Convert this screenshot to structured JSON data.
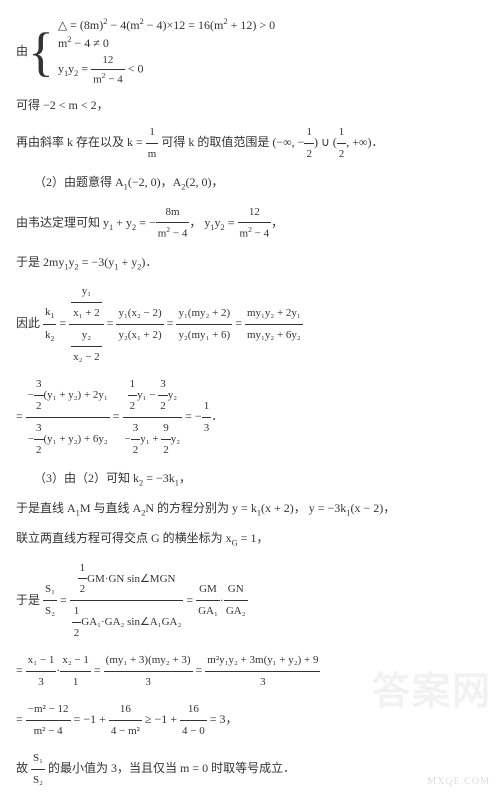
{
  "watermark": "答案网",
  "watermark_small": "MXQE.COM",
  "sys": {
    "lead": "由",
    "l1_a": "△ = (8m)",
    "l1_sup1": "2",
    "l1_b": " − 4(m",
    "l1_sup2": "2",
    "l1_c": " − 4)×12 = 16(m",
    "l1_sup3": "2",
    "l1_d": " + 12) > 0",
    "l2_a": "m",
    "l2_sup": "2",
    "l2_b": " − 4 ≠ 0",
    "l3_a": "y",
    "l3_sub1": "1",
    "l3_b": "y",
    "l3_sub2": "2",
    "l3_eq": " = ",
    "l3_num": "12",
    "l3_den_a": "m",
    "l3_den_sup": "2",
    "l3_den_b": " − 4",
    "l3_lt": " < 0"
  },
  "p1": "可得 −2 < m < 2，",
  "p2_a": "再由斜率 k 存在以及 k = ",
  "p2_num": "1",
  "p2_den": "m",
  "p2_b": " 可得 k 的取值范围是 ",
  "p2_range": "(−∞, −",
  "p2_hf_num": "1",
  "p2_hf_den": "2",
  "p2_mid": ") ∪ (",
  "p2_hf2_num": "1",
  "p2_hf2_den": "2",
  "p2_end": ", +∞)．",
  "p3_a": "（2）由题意得 A",
  "p3_s1": "1",
  "p3_b": "(−2, 0)，A",
  "p3_s2": "2",
  "p3_c": "(2, 0)，",
  "p4_a": "由韦达定理可知 y",
  "p4_s1": "1",
  "p4_b": " + y",
  "p4_s2": "2",
  "p4_eq": " = −",
  "p4_num1": "8m",
  "p4_den1_a": "m",
  "p4_den1_sup": "2",
  "p4_den1_b": " − 4",
  "p4_c": "，  y",
  "p4_s3": "1",
  "p4_d": "y",
  "p4_s4": "2",
  "p4_eq2": " = ",
  "p4_num2": "12",
  "p4_den2_a": "m",
  "p4_den2_sup": "2",
  "p4_den2_b": " − 4",
  "p4_e": "，",
  "p5_a": "于是 2my",
  "p5_s1": "1",
  "p5_b": "y",
  "p5_s2": "2",
  "p5_c": " = −3(y",
  "p5_s3": "1",
  "p5_d": " + y",
  "p5_s4": "2",
  "p5_e": ")．",
  "p6_lead": "因此 ",
  "p6_k1": "k",
  "p6_k1s": "1",
  "p6_k2": "k",
  "p6_k2s": "2",
  "p6_eq": " = ",
  "p6_f1_nn": "y₁",
  "p6_f1_nd": "x₁ + 2",
  "p6_f1_dn": "y₂",
  "p6_f1_dd": "x₂ − 2",
  "p6_eq2": " = ",
  "p6_f2n": "y₁(x₂ − 2)",
  "p6_f2d": "y₂(x₁ + 2)",
  "p6_eq3": " = ",
  "p6_f3n": "y₁(my₂ + 2)",
  "p6_f3d": "y₂(my₁ + 6)",
  "p6_eq4": " = ",
  "p6_f4n": "my₁y₂ + 2y₁",
  "p6_f4d": "my₁y₂ + 6y₂",
  "p7_eq": "= ",
  "p7_f1n_a": "−",
  "p7_f1n_fn": "3",
  "p7_f1n_fd": "2",
  "p7_f1n_b": "(y₁ + y₂) + 2y₁",
  "p7_f1d_a": "−",
  "p7_f1d_fn": "3",
  "p7_f1d_fd": "2",
  "p7_f1d_b": "(y₁ + y₂) + 6y₂",
  "p7_eq2": " = ",
  "p7_f2n_fn1": "1",
  "p7_f2n_fd1": "2",
  "p7_f2n_a": "y₁ − ",
  "p7_f2n_fn2": "3",
  "p7_f2n_fd2": "2",
  "p7_f2n_b": "y₂",
  "p7_f2d_a": "−",
  "p7_f2d_fn1": "3",
  "p7_f2d_fd1": "2",
  "p7_f2d_b": "y₁ + ",
  "p7_f2d_fn2": "9",
  "p7_f2d_fd2": "2",
  "p7_f2d_c": "y₂",
  "p7_eq3": " = −",
  "p7_res_n": "1",
  "p7_res_d": "3",
  "p7_end": "．",
  "p8_a": "（3）由（2）可知 k",
  "p8_s1": "2",
  "p8_b": " = −3k",
  "p8_s2": "1",
  "p8_c": "，",
  "p9_a": "于是直线 A",
  "p9_s1": "1",
  "p9_b": "M 与直线 A",
  "p9_s2": "2",
  "p9_c": "N 的方程分别为 y = k",
  "p9_s3": "1",
  "p9_d": "(x + 2)，  y = −3k",
  "p9_s4": "1",
  "p9_e": "(x − 2)，",
  "p10_a": "联立两直线方程可得交点 G 的横坐标为 x",
  "p10_sub": "G",
  "p10_b": " = 1，",
  "p11_lead": "于是 ",
  "p11_sn": "S₁",
  "p11_sd": "S₂",
  "p11_eq": " = ",
  "p11_f1n_fn": "1",
  "p11_f1n_fd": "2",
  "p11_f1n_b": "GM·GN sin∠MGN",
  "p11_f1d_fn": "1",
  "p11_f1d_fd": "2",
  "p11_f1d_b": "GA₁·GA₂ sin∠A₁GA₂",
  "p11_eq2": " = ",
  "p11_f2an": "GM",
  "p11_f2ad": "GA₁",
  "p11_dot": "·",
  "p11_f2bn": "GN",
  "p11_f2bd": "GA₂",
  "p12_eq": "= ",
  "p12_f1n": "x₁ − 1",
  "p12_f1d": "3",
  "p12_dot": "·",
  "p12_f2n": "x₂ − 1",
  "p12_f2d": "1",
  "p12_eq2": " = ",
  "p12_f3n": "(my₁ + 3)(my₂ + 3)",
  "p12_f3d": "3",
  "p12_eq3": " = ",
  "p12_f4n": "m²y₁y₂ + 3m(y₁ + y₂) + 9",
  "p12_f4d": "3",
  "p13_eq": "= ",
  "p13_f1n": "−m² − 12",
  "p13_f1d": "m² − 4",
  "p13_a": " = −1 + ",
  "p13_f2n": "16",
  "p13_f2d": "4 − m²",
  "p13_b": " ≥ −1 + ",
  "p13_f3n": "16",
  "p13_f3d": "4 − 0",
  "p13_c": " = 3，",
  "p14_a": "故 ",
  "p14_sn": "S₁",
  "p14_sd": "S₂",
  "p14_b": " 的最小值为 3，当且仅当 m = 0 时取等号成立．"
}
